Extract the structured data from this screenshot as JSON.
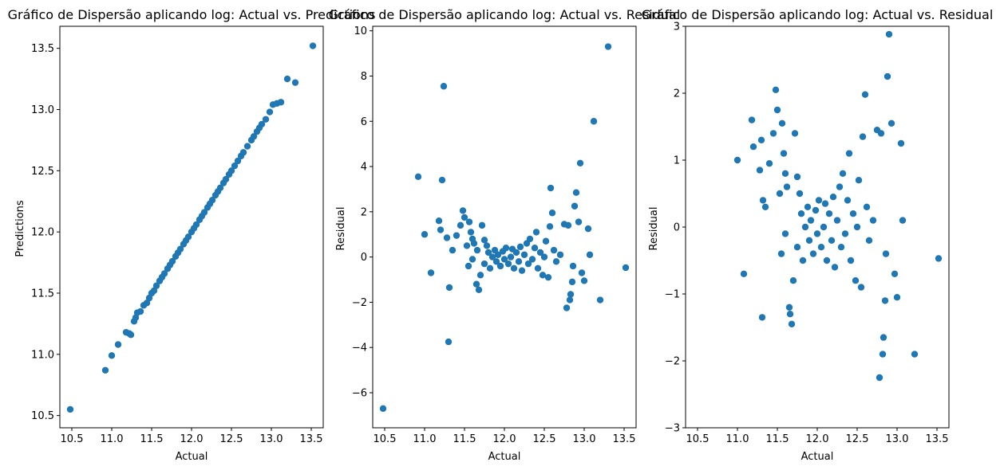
{
  "colors": {
    "marker": "#1f77b4",
    "axis": "#000000",
    "background": "#ffffff"
  },
  "chart_data": [
    {
      "type": "scatter",
      "title": "Gráfico de Dispersão aplicando log: Actual vs. Predictions",
      "xlabel": "Actual",
      "ylabel": "Predictions",
      "xlim": [
        10.35,
        13.65
      ],
      "ylim": [
        10.4,
        13.68
      ],
      "xticks": [
        10.5,
        11.0,
        11.5,
        12.0,
        12.5,
        13.0,
        13.5
      ],
      "xtick_labels": [
        "10.5",
        "11.0",
        "11.5",
        "12.0",
        "12.5",
        "13.0",
        "13.5"
      ],
      "yticks": [
        10.5,
        11.0,
        11.5,
        12.0,
        12.5,
        13.0,
        13.5
      ],
      "ytick_labels": [
        "10.5",
        "11.0",
        "11.5",
        "12.0",
        "12.5",
        "13.0",
        "13.5"
      ],
      "grid": false,
      "points": [
        [
          10.48,
          10.55
        ],
        [
          10.92,
          10.87
        ],
        [
          11.0,
          10.99
        ],
        [
          11.08,
          11.08
        ],
        [
          11.18,
          11.18
        ],
        [
          11.22,
          11.17
        ],
        [
          11.24,
          11.16
        ],
        [
          11.28,
          11.27
        ],
        [
          11.3,
          11.3
        ],
        [
          11.32,
          11.34
        ],
        [
          11.36,
          11.35
        ],
        [
          11.4,
          11.4
        ],
        [
          11.44,
          11.42
        ],
        [
          11.47,
          11.46
        ],
        [
          11.5,
          11.5
        ],
        [
          11.53,
          11.52
        ],
        [
          11.56,
          11.56
        ],
        [
          11.6,
          11.6
        ],
        [
          11.63,
          11.63
        ],
        [
          11.66,
          11.66
        ],
        [
          11.7,
          11.7
        ],
        [
          11.73,
          11.73
        ],
        [
          11.76,
          11.76
        ],
        [
          11.8,
          11.8
        ],
        [
          11.83,
          11.83
        ],
        [
          11.86,
          11.86
        ],
        [
          11.9,
          11.9
        ],
        [
          11.93,
          11.93
        ],
        [
          11.96,
          11.96
        ],
        [
          12.0,
          12.0
        ],
        [
          12.03,
          12.03
        ],
        [
          12.06,
          12.06
        ],
        [
          12.1,
          12.1
        ],
        [
          12.13,
          12.13
        ],
        [
          12.16,
          12.16
        ],
        [
          12.2,
          12.2
        ],
        [
          12.23,
          12.23
        ],
        [
          12.26,
          12.26
        ],
        [
          12.3,
          12.3
        ],
        [
          12.33,
          12.33
        ],
        [
          12.36,
          12.36
        ],
        [
          12.4,
          12.4
        ],
        [
          12.43,
          12.43
        ],
        [
          12.47,
          12.47
        ],
        [
          12.5,
          12.5
        ],
        [
          12.54,
          12.54
        ],
        [
          12.58,
          12.58
        ],
        [
          12.62,
          12.62
        ],
        [
          12.65,
          12.65
        ],
        [
          12.7,
          12.7
        ],
        [
          12.75,
          12.75
        ],
        [
          12.78,
          12.78
        ],
        [
          12.82,
          12.82
        ],
        [
          12.85,
          12.85
        ],
        [
          12.88,
          12.88
        ],
        [
          12.93,
          12.92
        ],
        [
          12.98,
          12.98
        ],
        [
          13.02,
          13.04
        ],
        [
          13.07,
          13.05
        ],
        [
          13.12,
          13.06
        ],
        [
          13.2,
          13.25
        ],
        [
          13.3,
          13.22
        ],
        [
          13.52,
          13.52
        ]
      ]
    },
    {
      "type": "scatter",
      "title": "Gráfico de Dispersão aplicando log: Actual vs. Residual",
      "xlabel": "Actual",
      "ylabel": "Residual",
      "xlim": [
        10.35,
        13.65
      ],
      "ylim": [
        -7.55,
        10.2
      ],
      "xticks": [
        10.5,
        11.0,
        11.5,
        12.0,
        12.5,
        13.0,
        13.5
      ],
      "xtick_labels": [
        "10.5",
        "11.0",
        "11.5",
        "12.0",
        "12.5",
        "13.0",
        "13.5"
      ],
      "yticks": [
        -6,
        -4,
        -2,
        0,
        2,
        4,
        6,
        8,
        10
      ],
      "ytick_labels": [
        "−6",
        "−4",
        "−2",
        "0",
        "2",
        "4",
        "6",
        "8",
        "10"
      ],
      "grid": false,
      "points": [
        [
          10.48,
          -6.7
        ],
        [
          10.92,
          3.55
        ],
        [
          11.0,
          1.0
        ],
        [
          11.08,
          -0.7
        ],
        [
          11.18,
          1.6
        ],
        [
          11.2,
          1.2
        ],
        [
          11.22,
          3.4
        ],
        [
          11.24,
          7.55
        ],
        [
          11.28,
          0.85
        ],
        [
          11.3,
          -3.75
        ],
        [
          11.31,
          -1.35
        ],
        [
          11.35,
          0.3
        ],
        [
          11.4,
          0.95
        ],
        [
          11.45,
          1.4
        ],
        [
          11.48,
          2.05
        ],
        [
          11.5,
          1.75
        ],
        [
          11.53,
          0.5
        ],
        [
          11.56,
          1.55
        ],
        [
          11.58,
          1.1
        ],
        [
          11.6,
          0.8
        ],
        [
          11.62,
          0.6
        ],
        [
          11.66,
          0.3
        ],
        [
          11.68,
          -1.45
        ],
        [
          11.72,
          1.4
        ],
        [
          11.75,
          0.75
        ],
        [
          11.78,
          0.5
        ],
        [
          11.8,
          0.2
        ],
        [
          11.55,
          -0.4
        ],
        [
          11.6,
          -0.1
        ],
        [
          11.65,
          -1.2
        ],
        [
          11.7,
          -0.8
        ],
        [
          11.75,
          -0.3
        ],
        [
          11.82,
          -0.5
        ],
        [
          11.85,
          0.0
        ],
        [
          11.88,
          0.3
        ],
        [
          11.9,
          -0.2
        ],
        [
          11.92,
          0.1
        ],
        [
          11.95,
          -0.4
        ],
        [
          11.98,
          0.25
        ],
        [
          12.0,
          -0.1
        ],
        [
          12.02,
          0.4
        ],
        [
          12.05,
          -0.3
        ],
        [
          12.08,
          0.0
        ],
        [
          12.1,
          0.35
        ],
        [
          12.12,
          -0.5
        ],
        [
          12.15,
          0.2
        ],
        [
          12.18,
          -0.2
        ],
        [
          12.2,
          0.45
        ],
        [
          12.22,
          -0.6
        ],
        [
          12.25,
          0.1
        ],
        [
          12.28,
          0.6
        ],
        [
          12.3,
          -0.3
        ],
        [
          12.32,
          0.8
        ],
        [
          12.35,
          -0.1
        ],
        [
          12.38,
          0.4
        ],
        [
          12.4,
          1.1
        ],
        [
          12.42,
          -0.5
        ],
        [
          12.45,
          0.2
        ],
        [
          12.48,
          -0.8
        ],
        [
          12.5,
          0.0
        ],
        [
          12.52,
          0.7
        ],
        [
          12.55,
          -0.9
        ],
        [
          12.57,
          1.35
        ],
        [
          12.58,
          3.05
        ],
        [
          12.6,
          1.95
        ],
        [
          12.62,
          0.3
        ],
        [
          12.65,
          -0.2
        ],
        [
          12.7,
          0.1
        ],
        [
          12.75,
          1.45
        ],
        [
          12.78,
          -2.25
        ],
        [
          12.8,
          1.4
        ],
        [
          12.82,
          -1.9
        ],
        [
          12.83,
          -1.65
        ],
        [
          12.85,
          -1.1
        ],
        [
          12.86,
          -0.4
        ],
        [
          12.88,
          2.25
        ],
        [
          12.9,
          2.85
        ],
        [
          12.93,
          1.55
        ],
        [
          12.95,
          4.15
        ],
        [
          12.97,
          -0.7
        ],
        [
          13.0,
          -1.05
        ],
        [
          13.05,
          1.25
        ],
        [
          13.07,
          0.1
        ],
        [
          13.12,
          6.0
        ],
        [
          13.2,
          -1.9
        ],
        [
          13.3,
          9.3
        ],
        [
          13.52,
          -0.47
        ]
      ]
    },
    {
      "type": "scatter",
      "title": "Gráfico de Dispersão aplicando log: Actual vs. Residual",
      "xlabel": "Actual",
      "ylabel": "Residual",
      "xlim": [
        10.35,
        13.65
      ],
      "ylim": [
        -3,
        3
      ],
      "xticks": [
        10.5,
        11.0,
        11.5,
        12.0,
        12.5,
        13.0,
        13.5
      ],
      "xtick_labels": [
        "10.5",
        "11.0",
        "11.5",
        "12.0",
        "12.5",
        "13.0",
        "13.5"
      ],
      "yticks": [
        -3,
        -2,
        -1,
        0,
        1,
        2,
        3
      ],
      "ytick_labels": [
        "−3",
        "−2",
        "−1",
        "0",
        "1",
        "2",
        "3"
      ],
      "grid": false,
      "points": [
        [
          11.0,
          1.0
        ],
        [
          11.08,
          -0.7
        ],
        [
          11.18,
          1.6
        ],
        [
          11.2,
          1.2
        ],
        [
          11.28,
          0.85
        ],
        [
          11.3,
          1.3
        ],
        [
          11.31,
          -1.35
        ],
        [
          11.32,
          0.4
        ],
        [
          11.35,
          0.3
        ],
        [
          11.4,
          0.95
        ],
        [
          11.45,
          1.4
        ],
        [
          11.48,
          2.05
        ],
        [
          11.5,
          1.75
        ],
        [
          11.53,
          0.5
        ],
        [
          11.56,
          1.55
        ],
        [
          11.58,
          1.1
        ],
        [
          11.6,
          0.8
        ],
        [
          11.62,
          0.6
        ],
        [
          11.65,
          -1.2
        ],
        [
          11.66,
          -1.3
        ],
        [
          11.68,
          -1.45
        ],
        [
          11.72,
          1.4
        ],
        [
          11.75,
          0.75
        ],
        [
          11.78,
          0.5
        ],
        [
          11.55,
          -0.4
        ],
        [
          11.6,
          -0.1
        ],
        [
          11.7,
          -0.8
        ],
        [
          11.75,
          -0.3
        ],
        [
          11.8,
          0.2
        ],
        [
          11.82,
          -0.5
        ],
        [
          11.85,
          0.0
        ],
        [
          11.88,
          0.3
        ],
        [
          11.9,
          -0.2
        ],
        [
          11.92,
          0.1
        ],
        [
          11.95,
          -0.4
        ],
        [
          11.98,
          0.25
        ],
        [
          12.0,
          -0.1
        ],
        [
          12.02,
          0.4
        ],
        [
          12.05,
          -0.3
        ],
        [
          12.08,
          0.0
        ],
        [
          12.1,
          0.35
        ],
        [
          12.12,
          -0.5
        ],
        [
          12.15,
          0.2
        ],
        [
          12.18,
          -0.2
        ],
        [
          12.2,
          0.45
        ],
        [
          12.22,
          -0.6
        ],
        [
          12.25,
          0.1
        ],
        [
          12.28,
          0.6
        ],
        [
          12.3,
          -0.3
        ],
        [
          12.32,
          0.8
        ],
        [
          12.35,
          -0.1
        ],
        [
          12.38,
          0.4
        ],
        [
          12.4,
          1.1
        ],
        [
          12.42,
          -0.5
        ],
        [
          12.45,
          0.2
        ],
        [
          12.48,
          -0.8
        ],
        [
          12.5,
          0.0
        ],
        [
          12.52,
          0.7
        ],
        [
          12.55,
          -0.9
        ],
        [
          12.57,
          1.35
        ],
        [
          12.6,
          1.98
        ],
        [
          12.62,
          0.3
        ],
        [
          12.65,
          -0.2
        ],
        [
          12.7,
          0.1
        ],
        [
          12.75,
          1.45
        ],
        [
          12.78,
          -2.25
        ],
        [
          12.8,
          1.4
        ],
        [
          12.82,
          -1.9
        ],
        [
          12.83,
          -1.65
        ],
        [
          12.85,
          -1.1
        ],
        [
          12.86,
          -0.4
        ],
        [
          12.88,
          2.25
        ],
        [
          12.9,
          2.88
        ],
        [
          12.93,
          1.55
        ],
        [
          12.97,
          -0.7
        ],
        [
          13.0,
          -1.05
        ],
        [
          13.05,
          1.25
        ],
        [
          13.07,
          0.1
        ],
        [
          13.22,
          -1.9
        ],
        [
          13.52,
          -0.47
        ]
      ]
    }
  ]
}
